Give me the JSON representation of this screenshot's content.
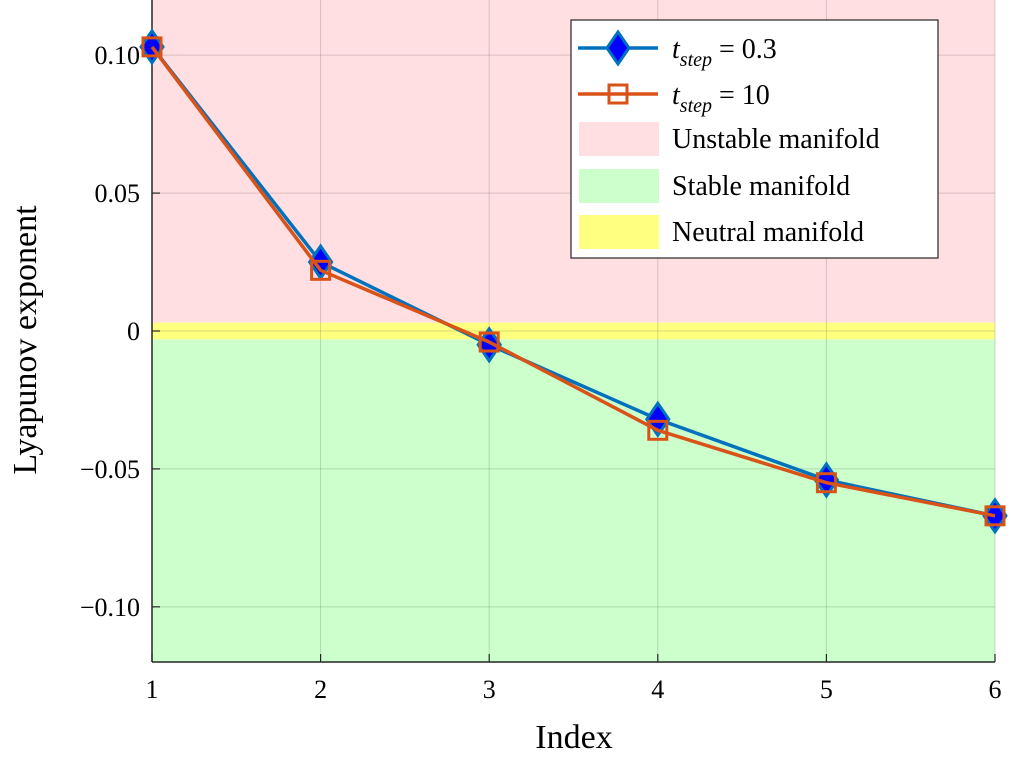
{
  "chart_data": {
    "type": "line",
    "xlabel": "Index",
    "ylabel": "Lyapunov exponent",
    "xlim": [
      1,
      6
    ],
    "ylim": [
      -0.12,
      0.12
    ],
    "xticks": [
      1,
      2,
      3,
      4,
      5,
      6
    ],
    "xtick_labels": [
      "1",
      "2",
      "3",
      "4",
      "5",
      "6"
    ],
    "yticks": [
      -0.1,
      -0.05,
      0,
      0.05,
      0.1
    ],
    "ytick_labels": [
      "−0.10",
      "−0.05",
      "0",
      "0.05",
      "0.10"
    ],
    "grid": true,
    "legend_position": "top-right",
    "regions": [
      {
        "name": "Unstable manifold",
        "from": 0.003,
        "to": 0.12,
        "color": "#ffdfe2"
      },
      {
        "name": "Stable manifold",
        "from": -0.12,
        "to": -0.003,
        "color": "#ccffcc"
      },
      {
        "name": "Neutral manifold",
        "from": -0.003,
        "to": 0.003,
        "color": "#ffff80"
      }
    ],
    "series": [
      {
        "label_base": "t",
        "label_sub": "step",
        "label_rest": " = 0.3",
        "marker": "diamond",
        "line_color": "#0072bd",
        "marker_fill": "#0000ff",
        "x": [
          1,
          2,
          3,
          4,
          5,
          6
        ],
        "y": [
          0.103,
          0.025,
          -0.005,
          -0.032,
          -0.054,
          -0.067
        ]
      },
      {
        "label_base": "t",
        "label_sub": "step",
        "label_rest": " = 10",
        "marker": "square",
        "line_color": "#d95319",
        "marker_fill": "none",
        "x": [
          1,
          2,
          3,
          4,
          5,
          6
        ],
        "y": [
          0.103,
          0.022,
          -0.004,
          -0.036,
          -0.055,
          -0.067
        ]
      }
    ]
  }
}
